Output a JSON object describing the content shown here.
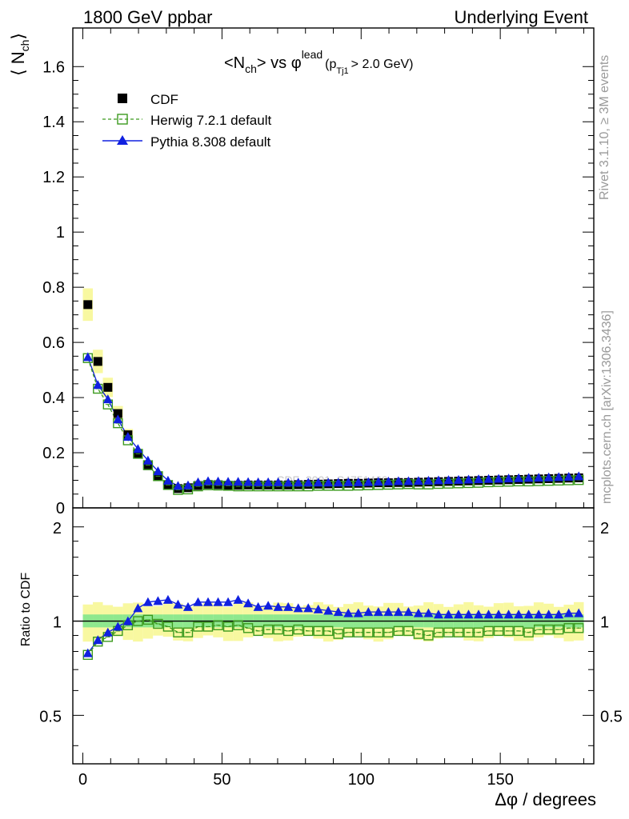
{
  "header": {
    "left": "1800 GeV ppbar",
    "right": "Underlying Event"
  },
  "side_text": {
    "rivet": "Rivet 3.1.10, ≥ 3M events",
    "source": "mcplots.cern.ch [arXiv:1306.3436]"
  },
  "watermark": "CDF_2001_S4751469",
  "chart_data": [
    {
      "type": "scatter",
      "title": "<N_ch> vs φ^lead (p_Tj1 > 2.0 GeV)",
      "title_parts": {
        "a": "<N",
        "a_sub": "ch",
        "b": "> vs φ",
        "b_sup": "lead",
        "c": "(p",
        "c_sub": "Tj1",
        "d": "> 2.0 GeV)"
      },
      "ylabel": "⟨ N_ch ⟩",
      "ylabel_parts": {
        "main": "⟨ N",
        "sub": "ch",
        "close": "⟩"
      },
      "xlim": [
        -3.6,
        183.6
      ],
      "ylim": [
        0,
        1.74
      ],
      "yticks": [
        0,
        0.2,
        0.4,
        0.6,
        0.8,
        1,
        1.2,
        1.4,
        1.6
      ],
      "ytick_labels": [
        "0",
        "0.2",
        "0.4",
        "0.6",
        "0.8",
        "1",
        "1.2",
        "1.4",
        "1.6"
      ],
      "legend_placement": "top-left",
      "x": [
        1.8,
        5.4,
        9,
        12.6,
        16.2,
        19.8,
        23.4,
        27,
        30.6,
        34.2,
        37.8,
        41.4,
        45,
        48.6,
        52.2,
        55.8,
        59.4,
        63,
        66.6,
        70.2,
        73.8,
        77.4,
        81,
        84.6,
        88.2,
        91.8,
        95.4,
        99,
        102.6,
        106.2,
        109.8,
        113.4,
        117,
        120.6,
        124.2,
        127.8,
        131.4,
        135,
        138.6,
        142.2,
        145.8,
        149.4,
        153,
        156.6,
        160.2,
        163.8,
        167.4,
        171,
        174.6,
        178.2
      ],
      "series": [
        {
          "name": "CDF",
          "marker": "filled-square",
          "color": "#000000",
          "values": [
            0.737,
            0.531,
            0.437,
            0.342,
            0.265,
            0.195,
            0.153,
            0.115,
            0.084,
            0.07,
            0.073,
            0.081,
            0.085,
            0.084,
            0.082,
            0.082,
            0.083,
            0.083,
            0.083,
            0.083,
            0.083,
            0.084,
            0.085,
            0.086,
            0.087,
            0.088,
            0.089,
            0.089,
            0.09,
            0.091,
            0.091,
            0.092,
            0.092,
            0.093,
            0.094,
            0.095,
            0.096,
            0.097,
            0.098,
            0.099,
            0.1,
            0.101,
            0.102,
            0.103,
            0.104,
            0.105,
            0.106,
            0.107,
            0.108,
            0.109
          ]
        },
        {
          "name": "Herwig 7.2.1 default",
          "marker": "open-square",
          "line": "dashed",
          "color": "#3c9a1e",
          "values": [
            0.543,
            0.432,
            0.375,
            0.307,
            0.245,
            0.196,
            0.155,
            0.115,
            0.083,
            0.065,
            0.067,
            0.078,
            0.082,
            0.081,
            0.08,
            0.078,
            0.078,
            0.078,
            0.078,
            0.078,
            0.078,
            0.078,
            0.078,
            0.08,
            0.08,
            0.08,
            0.08,
            0.081,
            0.082,
            0.083,
            0.084,
            0.085,
            0.086,
            0.085,
            0.085,
            0.087,
            0.088,
            0.089,
            0.09,
            0.091,
            0.093,
            0.094,
            0.095,
            0.096,
            0.096,
            0.097,
            0.098,
            0.099,
            0.1,
            0.101
          ]
        },
        {
          "name": "Pythia 8.308 default",
          "marker": "filled-triangle",
          "line": "solid",
          "color": "#1020e0",
          "values": [
            0.547,
            0.446,
            0.394,
            0.321,
            0.258,
            0.214,
            0.172,
            0.133,
            0.099,
            0.08,
            0.082,
            0.093,
            0.097,
            0.096,
            0.095,
            0.095,
            0.094,
            0.093,
            0.093,
            0.093,
            0.092,
            0.092,
            0.092,
            0.092,
            0.092,
            0.092,
            0.093,
            0.093,
            0.094,
            0.095,
            0.096,
            0.097,
            0.097,
            0.098,
            0.099,
            0.1,
            0.101,
            0.102,
            0.103,
            0.104,
            0.105,
            0.106,
            0.107,
            0.108,
            0.109,
            0.11,
            0.111,
            0.112,
            0.113,
            0.115
          ]
        }
      ]
    },
    {
      "type": "scatter",
      "xlabel": "Δφ / degrees",
      "ylabel": "Ratio to CDF",
      "xlim": [
        -3.6,
        183.6
      ],
      "xticks": [
        0,
        50,
        100,
        150
      ],
      "ylim": [
        0.35,
        2.3
      ],
      "yscale": "log",
      "yticks": [
        0.5,
        1,
        2
      ],
      "ytick_labels": [
        "0.5",
        "1",
        "2"
      ],
      "reference_line": 1,
      "band_colors": {
        "inner": "#8ee88e",
        "outer": "#f8f8a0"
      },
      "series": [
        {
          "name": "Herwig 7.2.1 default",
          "color": "#3c9a1e",
          "values": [
            0.78,
            0.86,
            0.89,
            0.93,
            0.97,
            1.0,
            1.01,
            0.98,
            0.96,
            0.92,
            0.92,
            0.96,
            0.96,
            0.97,
            0.96,
            0.97,
            0.95,
            0.93,
            0.94,
            0.94,
            0.93,
            0.94,
            0.93,
            0.93,
            0.93,
            0.91,
            0.92,
            0.92,
            0.92,
            0.92,
            0.92,
            0.93,
            0.93,
            0.91,
            0.9,
            0.92,
            0.92,
            0.92,
            0.92,
            0.92,
            0.93,
            0.93,
            0.93,
            0.93,
            0.92,
            0.94,
            0.94,
            0.94,
            0.95,
            0.95
          ]
        },
        {
          "name": "Pythia 8.308 default",
          "color": "#1020e0",
          "values": [
            0.79,
            0.87,
            0.92,
            0.96,
            1.0,
            1.1,
            1.15,
            1.16,
            1.17,
            1.13,
            1.11,
            1.15,
            1.15,
            1.15,
            1.15,
            1.17,
            1.14,
            1.11,
            1.12,
            1.11,
            1.11,
            1.1,
            1.1,
            1.09,
            1.08,
            1.07,
            1.06,
            1.06,
            1.07,
            1.07,
            1.07,
            1.07,
            1.07,
            1.06,
            1.06,
            1.05,
            1.05,
            1.05,
            1.05,
            1.05,
            1.05,
            1.05,
            1.05,
            1.05,
            1.05,
            1.05,
            1.05,
            1.05,
            1.06,
            1.06
          ]
        }
      ]
    }
  ]
}
